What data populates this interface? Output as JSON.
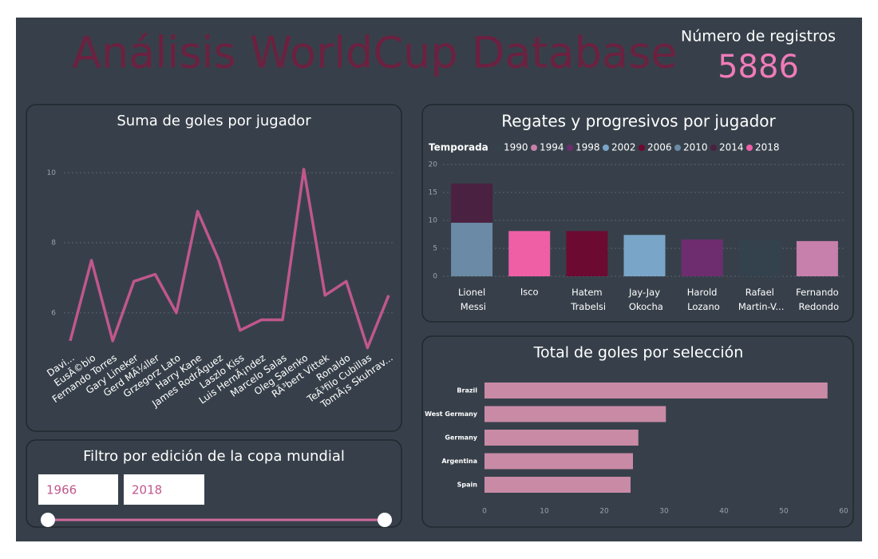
{
  "header": {
    "title": "Análisis WorldCup Database",
    "card_label": "Número de registros",
    "card_value": "5886"
  },
  "chart_data": [
    {
      "type": "line",
      "title": "Suma de goles por jugador",
      "categories": [
        "Davi...",
        "EusÃ©bio",
        "Fernando Torres",
        "Gary Lineker",
        "Gerd MÃ¼ller",
        "Grzegorz Lato",
        "Harry Kane",
        "James RodrÃ­guez",
        "Laszlo Kiss",
        "Luis HernÃ¡ndez",
        "Marcelo Salas",
        "Oleg Salenko",
        "RÃ³bert Vittek",
        "Ronaldo",
        "TeÃ³filo Cubillas",
        "TomÃ¡s Skuhrav..."
      ],
      "values": [
        5.2,
        7.5,
        5.2,
        6.9,
        7.1,
        6.0,
        8.9,
        7.5,
        5.5,
        5.8,
        5.8,
        10.1,
        6.5,
        6.9,
        5.0,
        6.5
      ],
      "color": "#c0578d",
      "ylim": [
        4.9,
        10.6
      ],
      "yticks": [
        6,
        8,
        10
      ],
      "grid": true
    },
    {
      "type": "stacked_bar",
      "title": "Regates y progresivos por jugador",
      "legend_title": "Temporada",
      "categories": [
        "Lionel Messi",
        "Isco",
        "Hatem Trabelsi",
        "Jay-Jay Okocha",
        "Harold Lozano",
        "Rafael Martin-V...",
        "Fernando Redondo"
      ],
      "series": [
        {
          "name": "1990",
          "color": "#34424e",
          "values": [
            null,
            null,
            null,
            null,
            null,
            6.3,
            null
          ]
        },
        {
          "name": "1994",
          "color": "#c77fab",
          "values": [
            null,
            null,
            null,
            null,
            null,
            null,
            6.3
          ]
        },
        {
          "name": "1998",
          "color": "#6e2d6e",
          "values": [
            null,
            null,
            null,
            null,
            6.6,
            null,
            null
          ]
        },
        {
          "name": "2002",
          "color": "#79a6c8",
          "values": [
            null,
            null,
            null,
            7.4,
            null,
            null,
            null
          ]
        },
        {
          "name": "2006",
          "color": "#6d0a32",
          "values": [
            null,
            null,
            8.1,
            null,
            null,
            null,
            null
          ]
        },
        {
          "name": "2010",
          "color": "#6b8aa5",
          "values": [
            9.6,
            null,
            null,
            null,
            null,
            null,
            null
          ]
        },
        {
          "name": "2014",
          "color": "#4b2141",
          "values": [
            7.0,
            null,
            null,
            null,
            null,
            null,
            null
          ]
        },
        {
          "name": "2018",
          "color": "#ee5fa6",
          "values": [
            null,
            8.1,
            null,
            null,
            null,
            null,
            null
          ]
        }
      ],
      "ylim": [
        0,
        20
      ],
      "yticks": [
        0,
        5,
        10,
        15,
        20
      ],
      "grid": true,
      "legend": "top-left"
    },
    {
      "type": "hbar",
      "title": "Total de goles por selección",
      "categories": [
        "Brazil",
        "West Germany",
        "Germany",
        "Argentina",
        "Spain"
      ],
      "values": [
        57.3,
        30.3,
        25.7,
        24.8,
        24.4
      ],
      "color": "#c98aa6",
      "xlim": [
        0,
        60
      ],
      "xticks": [
        0,
        10,
        20,
        30,
        40,
        50,
        60
      ]
    }
  ],
  "filter": {
    "title": "Filtro por edición de la copa mundial",
    "from": "1966",
    "to": "2018"
  }
}
